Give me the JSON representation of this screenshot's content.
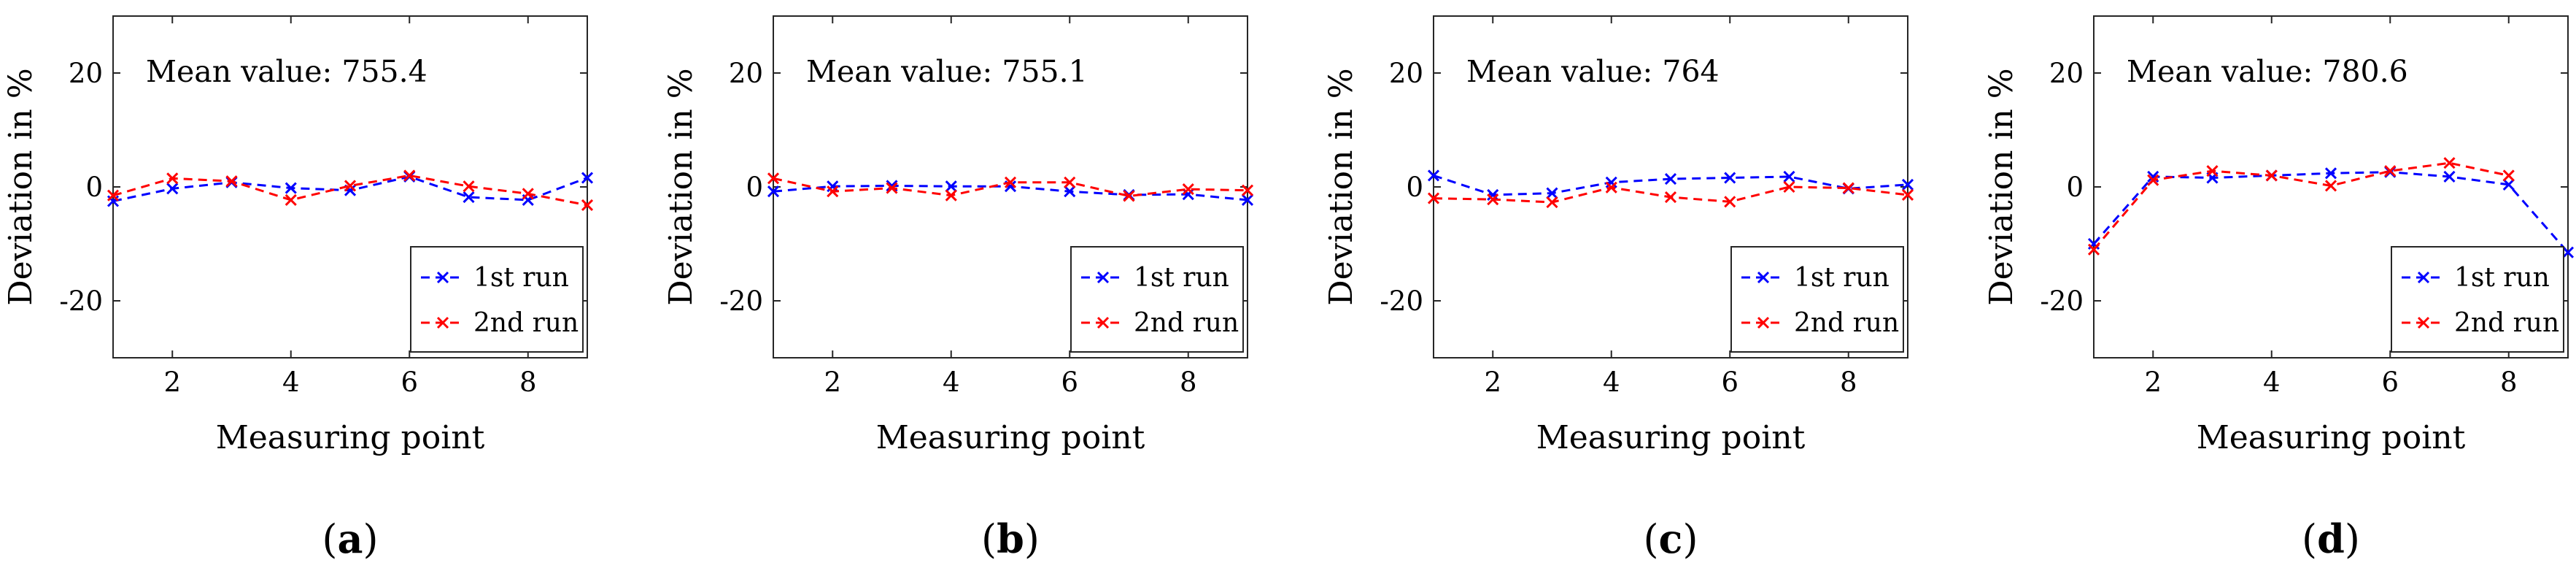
{
  "chart_data": [
    {
      "type": "line",
      "panel_label": "a",
      "annotation": "Mean value: 755.4",
      "xlabel": "Measuring point",
      "ylabel": "Deviation in %",
      "xlim": [
        1,
        9
      ],
      "ylim": [
        -30,
        30
      ],
      "xticks": [
        2,
        4,
        6,
        8
      ],
      "yticks": [
        -20,
        0,
        20
      ],
      "legend_position": "bottom-right",
      "x": [
        1,
        2,
        3,
        4,
        5,
        6,
        7,
        8,
        9
      ],
      "series": [
        {
          "name": "1st run",
          "color": "#0000ff",
          "values": [
            -2.5,
            -0.3,
            0.8,
            -0.2,
            -0.6,
            1.8,
            -1.8,
            -2.3,
            1.6
          ]
        },
        {
          "name": "2nd run",
          "color": "#ff0000",
          "values": [
            -1.5,
            1.5,
            1.0,
            -2.3,
            0.2,
            2.0,
            0.1,
            -1.2,
            -3.2
          ]
        }
      ]
    },
    {
      "type": "line",
      "panel_label": "b",
      "annotation": "Mean value: 755.1",
      "xlabel": "Measuring point",
      "ylabel": "Deviation in %",
      "xlim": [
        1,
        9
      ],
      "ylim": [
        -30,
        30
      ],
      "xticks": [
        2,
        4,
        6,
        8
      ],
      "yticks": [
        -20,
        0,
        20
      ],
      "legend_position": "bottom-right",
      "x": [
        1,
        2,
        3,
        4,
        5,
        6,
        7,
        8,
        9
      ],
      "series": [
        {
          "name": "1st run",
          "color": "#0000ff",
          "values": [
            -0.8,
            0.1,
            0.2,
            0.1,
            0.1,
            -0.8,
            -1.4,
            -1.3,
            -2.3
          ]
        },
        {
          "name": "2nd run",
          "color": "#ff0000",
          "values": [
            1.5,
            -0.8,
            -0.2,
            -1.5,
            0.8,
            0.8,
            -1.6,
            -0.4,
            -0.6
          ]
        }
      ]
    },
    {
      "type": "line",
      "panel_label": "c",
      "annotation": "Mean value: 764",
      "xlabel": "Measuring point",
      "ylabel": "Deviation in %",
      "xlim": [
        1,
        9
      ],
      "ylim": [
        -30,
        30
      ],
      "xticks": [
        2,
        4,
        6,
        8
      ],
      "yticks": [
        -20,
        0,
        20
      ],
      "legend_position": "bottom-right",
      "x": [
        1,
        2,
        3,
        4,
        5,
        6,
        7,
        8,
        9
      ],
      "series": [
        {
          "name": "1st run",
          "color": "#0000ff",
          "values": [
            2.0,
            -1.4,
            -1.1,
            0.8,
            1.4,
            1.6,
            1.8,
            -0.3,
            0.4
          ]
        },
        {
          "name": "2nd run",
          "color": "#ff0000",
          "values": [
            -2.0,
            -2.2,
            -2.7,
            -0.1,
            -1.8,
            -2.6,
            0.0,
            -0.2,
            -1.4
          ]
        }
      ]
    },
    {
      "type": "line",
      "panel_label": "d",
      "annotation": "Mean value: 780.6",
      "xlabel": "Measuring point",
      "ylabel": "Deviation in %",
      "xlim": [
        1,
        9
      ],
      "ylim": [
        -30,
        30
      ],
      "xticks": [
        2,
        4,
        6,
        8
      ],
      "yticks": [
        -20,
        0,
        20
      ],
      "legend_position": "bottom-right",
      "x": [
        1,
        2,
        3,
        4,
        5,
        6,
        7,
        8,
        9
      ],
      "series": [
        {
          "name": "1st run",
          "color": "#0000ff",
          "values": [
            -10.0,
            1.8,
            1.6,
            2.0,
            2.4,
            2.6,
            1.8,
            0.4,
            -11.5
          ]
        },
        {
          "name": "2nd run",
          "color": "#ff0000",
          "values": [
            -11.0,
            1.2,
            2.8,
            2.0,
            0.2,
            2.8,
            4.2,
            2.0,
            null
          ]
        }
      ]
    }
  ]
}
